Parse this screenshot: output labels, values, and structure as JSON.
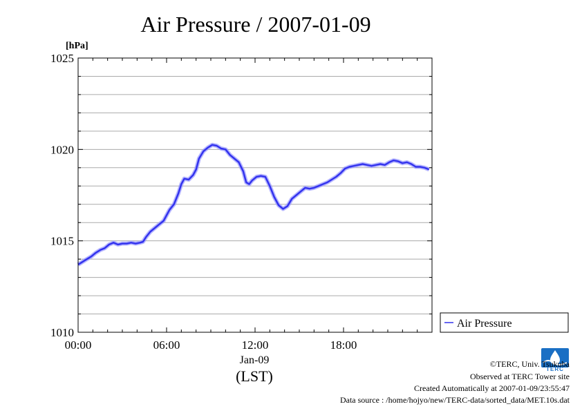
{
  "chart_data": {
    "type": "line",
    "title": "Air Pressure / 2007-01-09",
    "y_unit": "[hPa]",
    "ylim": [
      1010,
      1025
    ],
    "y_ticks": [
      "1010",
      "1015",
      "1020",
      "1025"
    ],
    "xlim_hours": [
      0,
      24
    ],
    "x_ticks": [
      {
        "hour": 0,
        "label": "00:00"
      },
      {
        "hour": 6,
        "label": "06:00"
      },
      {
        "hour": 12,
        "label": "12:00"
      },
      {
        "hour": 18,
        "label": "18:00"
      }
    ],
    "x_date_label": "Jan-09",
    "x_axis_label": "(LST)",
    "grid": true,
    "legend_position": "right-bottom",
    "series": [
      {
        "name": "Air Pressure",
        "color": "#3333ee",
        "points": [
          [
            0.0,
            1013.7
          ],
          [
            0.3,
            1013.85
          ],
          [
            0.6,
            1014.0
          ],
          [
            0.9,
            1014.15
          ],
          [
            1.2,
            1014.35
          ],
          [
            1.5,
            1014.5
          ],
          [
            1.8,
            1014.6
          ],
          [
            2.1,
            1014.8
          ],
          [
            2.4,
            1014.9
          ],
          [
            2.7,
            1014.8
          ],
          [
            3.0,
            1014.85
          ],
          [
            3.3,
            1014.85
          ],
          [
            3.6,
            1014.9
          ],
          [
            3.9,
            1014.85
          ],
          [
            4.2,
            1014.9
          ],
          [
            4.4,
            1014.95
          ],
          [
            4.6,
            1015.2
          ],
          [
            4.9,
            1015.5
          ],
          [
            5.2,
            1015.7
          ],
          [
            5.5,
            1015.9
          ],
          [
            5.8,
            1016.1
          ],
          [
            6.0,
            1016.4
          ],
          [
            6.2,
            1016.7
          ],
          [
            6.5,
            1017.0
          ],
          [
            6.8,
            1017.6
          ],
          [
            7.0,
            1018.1
          ],
          [
            7.2,
            1018.4
          ],
          [
            7.5,
            1018.35
          ],
          [
            7.8,
            1018.6
          ],
          [
            8.0,
            1018.9
          ],
          [
            8.2,
            1019.5
          ],
          [
            8.5,
            1019.9
          ],
          [
            8.8,
            1020.1
          ],
          [
            9.1,
            1020.25
          ],
          [
            9.4,
            1020.2
          ],
          [
            9.7,
            1020.05
          ],
          [
            10.0,
            1020.0
          ],
          [
            10.3,
            1019.7
          ],
          [
            10.6,
            1019.5
          ],
          [
            10.9,
            1019.3
          ],
          [
            11.2,
            1018.8
          ],
          [
            11.4,
            1018.2
          ],
          [
            11.6,
            1018.1
          ],
          [
            11.8,
            1018.3
          ],
          [
            12.1,
            1018.5
          ],
          [
            12.4,
            1018.55
          ],
          [
            12.7,
            1018.5
          ],
          [
            13.0,
            1018.0
          ],
          [
            13.3,
            1017.4
          ],
          [
            13.6,
            1016.95
          ],
          [
            13.9,
            1016.75
          ],
          [
            14.2,
            1016.9
          ],
          [
            14.5,
            1017.3
          ],
          [
            14.8,
            1017.5
          ],
          [
            15.1,
            1017.7
          ],
          [
            15.4,
            1017.9
          ],
          [
            15.7,
            1017.85
          ],
          [
            16.0,
            1017.9
          ],
          [
            16.3,
            1018.0
          ],
          [
            16.6,
            1018.1
          ],
          [
            16.9,
            1018.2
          ],
          [
            17.2,
            1018.35
          ],
          [
            17.5,
            1018.5
          ],
          [
            17.8,
            1018.7
          ],
          [
            18.1,
            1018.95
          ],
          [
            18.4,
            1019.05
          ],
          [
            18.7,
            1019.1
          ],
          [
            19.0,
            1019.15
          ],
          [
            19.3,
            1019.2
          ],
          [
            19.6,
            1019.15
          ],
          [
            19.9,
            1019.1
          ],
          [
            20.2,
            1019.15
          ],
          [
            20.5,
            1019.2
          ],
          [
            20.8,
            1019.15
          ],
          [
            21.1,
            1019.3
          ],
          [
            21.4,
            1019.4
          ],
          [
            21.7,
            1019.35
          ],
          [
            22.0,
            1019.25
          ],
          [
            22.3,
            1019.3
          ],
          [
            22.6,
            1019.2
          ],
          [
            22.9,
            1019.05
          ],
          [
            23.2,
            1019.05
          ],
          [
            23.5,
            1019.0
          ],
          [
            23.8,
            1018.9
          ]
        ]
      }
    ]
  },
  "footer": {
    "copyright": "©TERC, Univ. Tsukuba",
    "observed": "Observed at TERC Tower site",
    "created": "Created Automatically at 2007-01-09/23:55:47",
    "source": "Data source : /home/hojyo/new/TERC-data/sorted_data/MET.10s.dat"
  },
  "logo": {
    "text": "TERC",
    "icon": "terc-logo-icon",
    "color": "#1a6fc4"
  }
}
